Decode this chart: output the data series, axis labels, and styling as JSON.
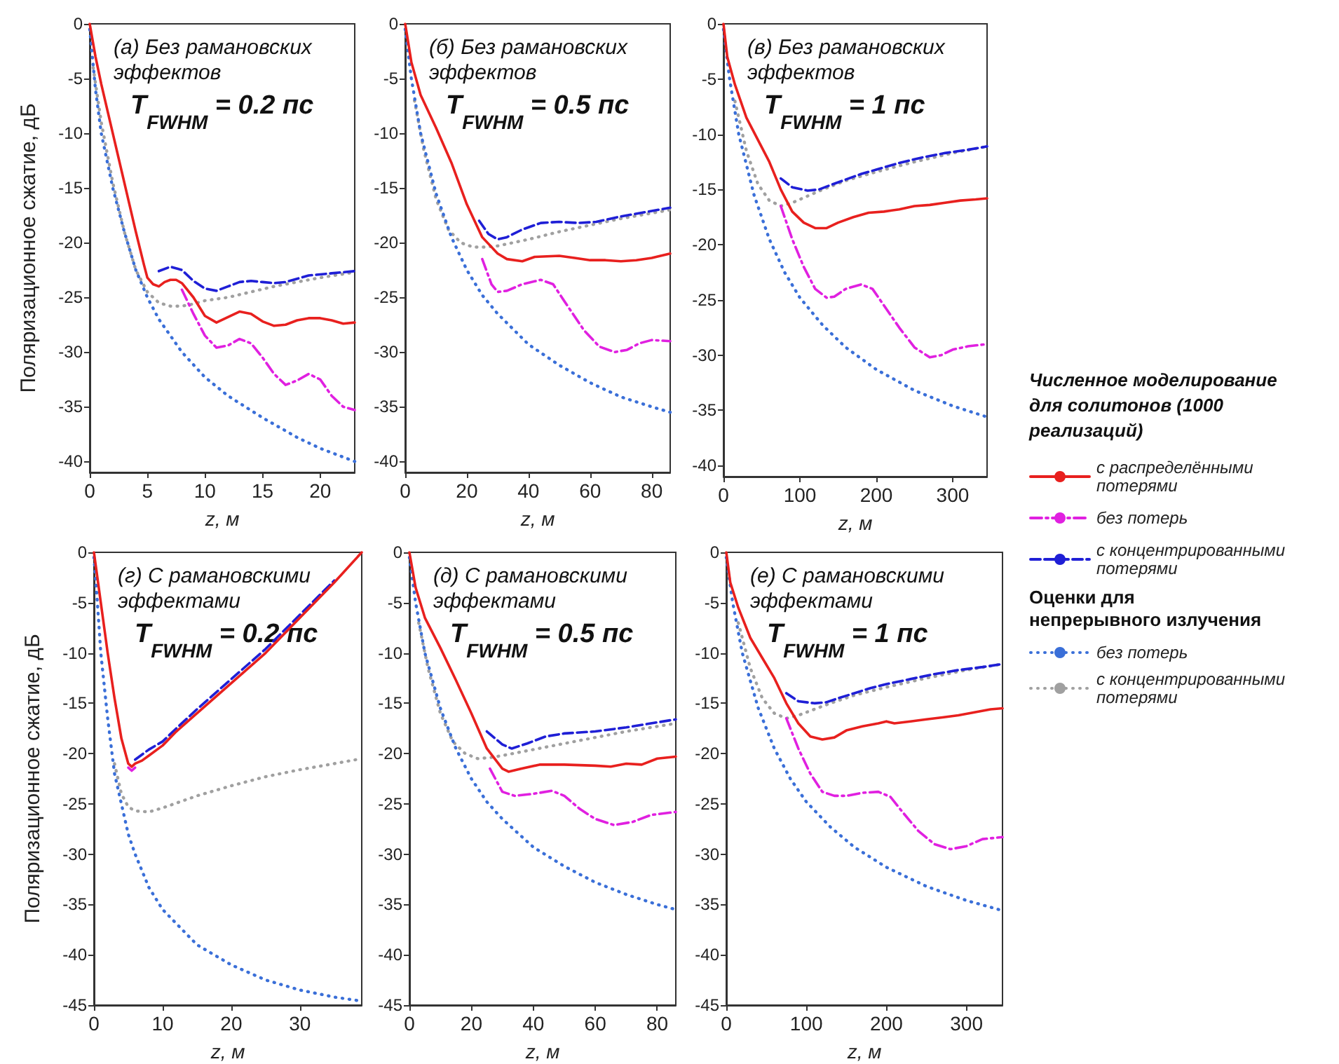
{
  "chart_data": [
    {
      "type": "line",
      "title": "(а) Без рамановских эффектов",
      "subtitle": "T$_{FWHM}$ = 0.2 пс",
      "xlabel": "z, м",
      "ylabel": "Поляризационное сжатие, дБ",
      "xlim": [
        0,
        23
      ],
      "xticks": [
        0,
        5,
        10,
        15,
        20
      ],
      "ylim": [
        -41,
        0
      ],
      "yticks": [
        -40,
        -35,
        -30,
        -25,
        -20,
        -15,
        -10,
        -5,
        0
      ],
      "series": [
        {
          "color": "#e8201e",
          "line_style": "solid",
          "x": [
            0,
            0.5,
            1,
            2,
            3,
            4,
            4.7,
            5,
            5.5,
            6,
            6.5,
            7,
            7.5,
            8,
            9,
            10,
            11,
            12,
            13,
            14,
            15,
            16,
            17,
            18,
            19,
            20,
            21,
            22,
            23
          ],
          "values": [
            0,
            -3,
            -5.5,
            -10,
            -14.5,
            -19,
            -22,
            -23.2,
            -23.8,
            -24,
            -23.6,
            -23.4,
            -23.4,
            -23.7,
            -25,
            -26.7,
            -27.3,
            -26.8,
            -26.3,
            -26.5,
            -27.2,
            -27.6,
            -27.5,
            -27.1,
            -26.9,
            -26.9,
            -27.1,
            -27.4,
            -27.3
          ]
        },
        {
          "color": "#e020e0",
          "line_style": "dashdot",
          "x": [
            8,
            9,
            10,
            11,
            12,
            13,
            14,
            15,
            16,
            17,
            18,
            19,
            20,
            21,
            22,
            23
          ],
          "values": [
            -24.3,
            -26.5,
            -28.5,
            -29.6,
            -29.4,
            -28.8,
            -29.2,
            -30.5,
            -32,
            -33,
            -32.6,
            -32,
            -32.5,
            -34,
            -35,
            -35.3
          ]
        },
        {
          "color": "#1f1fd6",
          "line_style": "dashed",
          "x": [
            6,
            7,
            8,
            9,
            10,
            11,
            12,
            13,
            14,
            15,
            16,
            17,
            18,
            19,
            20,
            21,
            22,
            23
          ],
          "values": [
            -22.6,
            -22.2,
            -22.5,
            -23.5,
            -24.2,
            -24.4,
            -24,
            -23.6,
            -23.5,
            -23.6,
            -23.7,
            -23.6,
            -23.3,
            -23,
            -22.9,
            -22.8,
            -22.7,
            -22.6
          ]
        },
        {
          "color": "#3a6fd8",
          "line_style": "dotted",
          "x": [
            0,
            0.5,
            1,
            2,
            3,
            4,
            5,
            6,
            8,
            10,
            12,
            15,
            18,
            20,
            23
          ],
          "values": [
            -0.5,
            -6,
            -10,
            -15,
            -19,
            -22.5,
            -25,
            -27,
            -30,
            -32.3,
            -34,
            -36,
            -37.8,
            -38.8,
            -40
          ]
        },
        {
          "color": "#a0a0a0",
          "line_style": "dotted",
          "x": [
            0.3,
            1,
            2,
            3,
            4,
            5,
            6,
            7,
            8,
            9,
            10,
            12,
            14,
            16,
            18,
            20,
            23
          ],
          "values": [
            -4,
            -9,
            -14.5,
            -19,
            -22.5,
            -24.5,
            -25.5,
            -25.8,
            -25.8,
            -25.6,
            -25.3,
            -25,
            -24.5,
            -24,
            -23.6,
            -23.2,
            -22.7
          ]
        }
      ]
    },
    {
      "type": "line",
      "title": "(б) Без рамановских эффектов",
      "subtitle": "T$_{FWHM}$ = 0.5 пс",
      "xlabel": "z, м",
      "xlim": [
        0,
        86
      ],
      "xticks": [
        0,
        20,
        40,
        60,
        80
      ],
      "ylim": [
        -41,
        0
      ],
      "yticks": [
        -40,
        -35,
        -30,
        -25,
        -20,
        -15,
        -10,
        -5,
        0
      ],
      "series": [
        {
          "color": "#e8201e",
          "line_style": "solid",
          "x": [
            0,
            2,
            5,
            10,
            15,
            20,
            25,
            30,
            33,
            38,
            42,
            50,
            55,
            60,
            65,
            70,
            75,
            80,
            86
          ],
          "values": [
            0,
            -3.5,
            -6.5,
            -9.5,
            -12.7,
            -16.5,
            -19.5,
            -21,
            -21.5,
            -21.7,
            -21.3,
            -21.2,
            -21.4,
            -21.6,
            -21.6,
            -21.7,
            -21.6,
            -21.4,
            -21
          ]
        },
        {
          "color": "#e020e0",
          "line_style": "dashdot",
          "x": [
            25,
            28,
            30,
            33,
            38,
            44,
            48,
            52,
            58,
            63,
            68,
            72,
            76,
            80,
            86
          ],
          "values": [
            -21.5,
            -23.8,
            -24.5,
            -24.4,
            -23.8,
            -23.4,
            -23.8,
            -25.5,
            -28,
            -29.5,
            -30,
            -29.8,
            -29.2,
            -28.9,
            -29
          ]
        },
        {
          "color": "#1f1fd6",
          "line_style": "dashed",
          "x": [
            24,
            27,
            30,
            33,
            38,
            44,
            50,
            56,
            62,
            70,
            78,
            86
          ],
          "values": [
            -18,
            -19.2,
            -19.7,
            -19.5,
            -18.8,
            -18.2,
            -18.1,
            -18.2,
            -18.1,
            -17.6,
            -17.2,
            -16.8
          ]
        },
        {
          "color": "#3a6fd8",
          "line_style": "dotted",
          "x": [
            0,
            2,
            5,
            10,
            15,
            20,
            25,
            30,
            40,
            50,
            60,
            70,
            80,
            86
          ],
          "values": [
            -0.5,
            -5,
            -10,
            -15.5,
            -19.5,
            -22.5,
            -24.8,
            -26.5,
            -29.3,
            -31.2,
            -32.8,
            -34.1,
            -35,
            -35.5
          ]
        },
        {
          "color": "#a0a0a0",
          "line_style": "dotted",
          "x": [
            3,
            6,
            10,
            14,
            18,
            22,
            26,
            30,
            40,
            50,
            60,
            70,
            80,
            86
          ],
          "values": [
            -7,
            -11.5,
            -16,
            -18.8,
            -20,
            -20.4,
            -20.4,
            -20.3,
            -19.7,
            -19,
            -18.4,
            -17.8,
            -17.3,
            -17
          ]
        }
      ]
    },
    {
      "type": "line",
      "title": "(в) Без рамановских эффектов",
      "subtitle": "T$_{FWHM}$ = 1 пс",
      "xlabel": "z, м",
      "xlim": [
        0,
        345
      ],
      "xticks": [
        0,
        100,
        200,
        300
      ],
      "ylim": [
        -41,
        0
      ],
      "yticks": [
        -40,
        -35,
        -30,
        -25,
        -20,
        -15,
        -10,
        -5,
        0
      ],
      "legend": "right",
      "legend_title": "Численное моделирование для солитонов (1000 реализаций)",
      "annotations": [
        "Оценки для непрерывного излучения"
      ],
      "series": [
        {
          "name": "с распределёнными потерями",
          "color": "#e8201e",
          "line_style": "solid",
          "x": [
            0,
            5,
            15,
            30,
            45,
            60,
            75,
            90,
            105,
            120,
            135,
            150,
            170,
            190,
            210,
            230,
            250,
            270,
            290,
            310,
            330,
            345
          ],
          "values": [
            0,
            -3,
            -5.5,
            -8.5,
            -10.5,
            -12.5,
            -15,
            -17,
            -18,
            -18.5,
            -18.5,
            -18,
            -17.5,
            -17.1,
            -17,
            -16.8,
            -16.5,
            -16.4,
            -16.2,
            -16,
            -15.9,
            -15.8
          ]
        },
        {
          "name": "без потерь",
          "color": "#e020e0",
          "line_style": "dashdot",
          "x": [
            75,
            90,
            105,
            120,
            135,
            145,
            160,
            180,
            195,
            210,
            230,
            250,
            270,
            285,
            300,
            320,
            345
          ],
          "values": [
            -16.5,
            -19.5,
            -22,
            -24,
            -24.8,
            -24.7,
            -24,
            -23.6,
            -24,
            -25.5,
            -27.5,
            -29.3,
            -30.2,
            -30,
            -29.5,
            -29.2,
            -29
          ]
        },
        {
          "name": "с концентрированными потерями",
          "color": "#1f1fd6",
          "line_style": "dashed",
          "x": [
            75,
            90,
            110,
            125,
            140,
            160,
            180,
            200,
            230,
            260,
            290,
            320,
            345
          ],
          "values": [
            -14,
            -14.8,
            -15.1,
            -15,
            -14.6,
            -14.1,
            -13.6,
            -13.2,
            -12.6,
            -12.1,
            -11.7,
            -11.4,
            -11.1
          ]
        },
        {
          "name": "без потерь",
          "color": "#3a6fd8",
          "line_style": "dotted",
          "x": [
            0,
            8,
            20,
            40,
            60,
            80,
            100,
            130,
            160,
            200,
            250,
            300,
            345
          ],
          "values": [
            -0.5,
            -5,
            -10,
            -15.5,
            -19.5,
            -22.5,
            -24.8,
            -27.3,
            -29.3,
            -31.3,
            -33.2,
            -34.6,
            -35.6
          ]
        },
        {
          "name": "с концентрированными потерями",
          "color": "#a0a0a0",
          "line_style": "dotted",
          "x": [
            15,
            30,
            45,
            60,
            75,
            90,
            110,
            130,
            160,
            200,
            250,
            300,
            345
          ],
          "values": [
            -7,
            -11.5,
            -14.5,
            -16,
            -16.5,
            -16.2,
            -15.6,
            -15,
            -14.2,
            -13.4,
            -12.5,
            -11.7,
            -11.1
          ]
        }
      ]
    },
    {
      "type": "line",
      "title": "(г) С рамановскими эффектами",
      "subtitle": "T$_{FWHM}$ = 0.2 пс",
      "xlabel": "z, м",
      "ylabel": "Поляризационное сжатие, дБ",
      "xlim": [
        0,
        39
      ],
      "xticks": [
        0,
        10,
        20,
        30
      ],
      "ylim": [
        -45,
        0
      ],
      "yticks": [
        -45,
        -40,
        -35,
        -30,
        -25,
        -20,
        -15,
        -10,
        -5,
        0
      ],
      "series": [
        {
          "color": "#e8201e",
          "line_style": "solid",
          "x": [
            0,
            1,
            2,
            3,
            4,
            5,
            5.5,
            6,
            7,
            8,
            10,
            12,
            15,
            20,
            25,
            30,
            35,
            39
          ],
          "values": [
            0,
            -5,
            -10,
            -14.5,
            -18.5,
            -21,
            -21.3,
            -21,
            -20.7,
            -20.2,
            -19.2,
            -17.8,
            -16,
            -13,
            -10,
            -6.5,
            -3,
            0
          ]
        },
        {
          "color": "#e020e0",
          "line_style": "dashdot",
          "x": [
            5,
            5.5,
            6
          ],
          "values": [
            -21.4,
            -21.7,
            -21.4
          ]
        },
        {
          "color": "#1f1fd6",
          "line_style": "dashed",
          "x": [
            6,
            8,
            10,
            12,
            15,
            20,
            25,
            30,
            35
          ],
          "values": [
            -20.6,
            -19.6,
            -18.8,
            -17.5,
            -15.6,
            -12.6,
            -9.6,
            -6.2,
            -2.8
          ]
        },
        {
          "color": "#3a6fd8",
          "line_style": "dotted",
          "x": [
            0,
            0.5,
            1,
            2,
            3,
            4,
            5,
            6,
            8,
            10,
            15,
            20,
            25,
            30,
            35,
            39
          ],
          "values": [
            -0.5,
            -5,
            -10,
            -16.5,
            -22,
            -25,
            -28,
            -30,
            -33.3,
            -35.5,
            -39,
            -41,
            -42.5,
            -43.5,
            -44.2,
            -44.6
          ]
        },
        {
          "color": "#a0a0a0",
          "line_style": "dotted",
          "x": [
            3,
            4,
            5,
            6,
            8,
            10,
            15,
            20,
            25,
            30,
            35,
            39
          ],
          "values": [
            -21,
            -24,
            -25.3,
            -25.7,
            -25.8,
            -25.4,
            -24.2,
            -23.2,
            -22.3,
            -21.6,
            -21,
            -20.5
          ]
        }
      ]
    },
    {
      "type": "line",
      "title": "(д) С рамановскими эффектами",
      "subtitle": "T$_{FWHM}$ = 0.5 пс",
      "xlabel": "z, м",
      "xlim": [
        0,
        86
      ],
      "xticks": [
        0,
        20,
        40,
        60,
        80
      ],
      "ylim": [
        -45,
        0
      ],
      "yticks": [
        -45,
        -40,
        -35,
        -30,
        -25,
        -20,
        -15,
        -10,
        -5,
        0
      ],
      "series": [
        {
          "color": "#e8201e",
          "line_style": "solid",
          "x": [
            0,
            2,
            5,
            10,
            15,
            20,
            25,
            30,
            32,
            36,
            42,
            50,
            60,
            65,
            70,
            75,
            80,
            86
          ],
          "values": [
            0,
            -3.5,
            -6.5,
            -9.5,
            -12.7,
            -16,
            -19.5,
            -21.5,
            -21.8,
            -21.5,
            -21.1,
            -21.1,
            -21.2,
            -21.3,
            -21,
            -21.1,
            -20.5,
            -20.3
          ]
        },
        {
          "color": "#e020e0",
          "line_style": "dashdot",
          "x": [
            26,
            30,
            34,
            40,
            46,
            50,
            55,
            60,
            66,
            72,
            78,
            86
          ],
          "values": [
            -21.5,
            -23.8,
            -24.2,
            -24,
            -23.7,
            -24.2,
            -25.5,
            -26.5,
            -27.1,
            -26.8,
            -26.1,
            -25.8
          ]
        },
        {
          "color": "#1f1fd6",
          "line_style": "dashed",
          "x": [
            25,
            30,
            33,
            38,
            44,
            50,
            60,
            70,
            80,
            86
          ],
          "values": [
            -17.8,
            -19.1,
            -19.5,
            -19,
            -18.3,
            -18,
            -17.8,
            -17.4,
            -16.9,
            -16.6
          ]
        },
        {
          "color": "#3a6fd8",
          "line_style": "dotted",
          "x": [
            0,
            2,
            5,
            10,
            15,
            20,
            25,
            30,
            40,
            50,
            60,
            70,
            80,
            86
          ],
          "values": [
            -0.5,
            -5,
            -10,
            -15.5,
            -19.5,
            -22.5,
            -24.8,
            -26.5,
            -29.3,
            -31.2,
            -32.8,
            -34,
            -35,
            -35.5
          ]
        },
        {
          "color": "#a0a0a0",
          "line_style": "dotted",
          "x": [
            3,
            6,
            10,
            14,
            18,
            22,
            26,
            30,
            40,
            50,
            60,
            70,
            80,
            86
          ],
          "values": [
            -7,
            -11.5,
            -16,
            -18.8,
            -20,
            -20.5,
            -20.4,
            -20.2,
            -19.6,
            -19,
            -18.4,
            -17.8,
            -17.3,
            -17
          ]
        }
      ]
    },
    {
      "type": "line",
      "title": "(е) С рамановскими эффектами",
      "subtitle": "T$_{FWHM}$ = 1 пс",
      "xlabel": "z, м",
      "xlim": [
        0,
        345
      ],
      "xticks": [
        0,
        100,
        200,
        300
      ],
      "ylim": [
        -45,
        0
      ],
      "yticks": [
        -45,
        -40,
        -35,
        -30,
        -25,
        -20,
        -15,
        -10,
        -5,
        0
      ],
      "series": [
        {
          "color": "#e8201e",
          "line_style": "solid",
          "x": [
            0,
            5,
            15,
            30,
            45,
            60,
            75,
            90,
            105,
            120,
            135,
            150,
            170,
            190,
            200,
            210,
            230,
            250,
            270,
            290,
            310,
            330,
            345
          ],
          "values": [
            0,
            -3,
            -5.5,
            -8.5,
            -10.5,
            -12.5,
            -15,
            -17,
            -18.3,
            -18.6,
            -18.4,
            -17.7,
            -17.3,
            -17,
            -16.8,
            -17,
            -16.8,
            -16.6,
            -16.4,
            -16.2,
            -15.9,
            -15.6,
            -15.5
          ]
        },
        {
          "color": "#e020e0",
          "line_style": "dashdot",
          "x": [
            75,
            90,
            105,
            120,
            135,
            150,
            170,
            190,
            205,
            220,
            240,
            260,
            280,
            300,
            320,
            345
          ],
          "values": [
            -16.5,
            -19.5,
            -22,
            -23.8,
            -24.2,
            -24.2,
            -23.9,
            -23.8,
            -24.3,
            -25.8,
            -27.7,
            -29,
            -29.5,
            -29.2,
            -28.5,
            -28.3
          ]
        },
        {
          "color": "#1f1fd6",
          "line_style": "dashed",
          "x": [
            75,
            90,
            110,
            125,
            140,
            160,
            180,
            200,
            230,
            260,
            290,
            320,
            345
          ],
          "values": [
            -14,
            -14.8,
            -15,
            -14.9,
            -14.5,
            -14,
            -13.5,
            -13.1,
            -12.6,
            -12.1,
            -11.7,
            -11.4,
            -11.1
          ]
        },
        {
          "color": "#3a6fd8",
          "line_style": "dotted",
          "x": [
            0,
            8,
            20,
            40,
            60,
            80,
            100,
            130,
            160,
            200,
            250,
            300,
            345
          ],
          "values": [
            -0.5,
            -5,
            -10,
            -15.5,
            -19.5,
            -22.5,
            -24.8,
            -27.3,
            -29.3,
            -31.3,
            -33.2,
            -34.6,
            -35.6
          ]
        },
        {
          "color": "#a0a0a0",
          "line_style": "dotted",
          "x": [
            15,
            30,
            45,
            60,
            75,
            90,
            110,
            130,
            160,
            200,
            250,
            300,
            345
          ],
          "values": [
            -7,
            -11.5,
            -14.5,
            -16,
            -16.5,
            -16.2,
            -15.6,
            -15,
            -14.2,
            -13.4,
            -12.5,
            -11.7,
            -11.1
          ]
        }
      ]
    }
  ]
}
